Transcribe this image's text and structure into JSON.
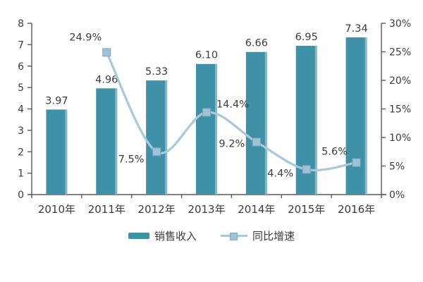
{
  "chart_data": {
    "type": "bar",
    "title": "",
    "categories": [
      "2010年",
      "2011年",
      "2012年",
      "2013年",
      "2014年",
      "2015年",
      "2016年"
    ],
    "series": [
      {
        "name": "销售收入",
        "type": "bar",
        "axis": "left",
        "color": "#3E91A7",
        "edge_highlight": "#9CC5D1",
        "values": [
          3.97,
          4.96,
          5.33,
          6.1,
          6.66,
          6.95,
          7.34
        ],
        "labels": [
          "3.97",
          "4.96",
          "5.33",
          "6.10",
          "6.66",
          "6.95",
          "7.34"
        ]
      },
      {
        "name": "同比增速",
        "type": "line",
        "axis": "right",
        "color": "#A9C9DA",
        "marker_color": "#9DC3D6",
        "marker_border": "#7FA8C0",
        "values": [
          null,
          24.9,
          7.5,
          14.4,
          9.2,
          4.4,
          5.6
        ],
        "labels": [
          "",
          "24.9%",
          "7.5%",
          "14.4%",
          "9.2%",
          "4.4%",
          "5.6%"
        ],
        "label_offsets": [
          null,
          [
            -30,
            -17
          ],
          [
            -36,
            15
          ],
          [
            37,
            -7
          ],
          [
            -35,
            7
          ],
          [
            -37,
            10
          ],
          [
            -31,
            -11
          ]
        ]
      }
    ],
    "left_axis": {
      "min": 0,
      "max": 8,
      "ticks": [
        "0",
        "1",
        "2",
        "3",
        "4",
        "5",
        "6",
        "7",
        "8"
      ]
    },
    "right_axis": {
      "min": 0,
      "max": 30,
      "ticks": [
        "0%",
        "5%",
        "10%",
        "15%",
        "20%",
        "25%",
        "30%"
      ]
    },
    "legend_position": "bottom",
    "grid": false,
    "text_color": "#3B3B3B",
    "axis_color": "#595959"
  }
}
